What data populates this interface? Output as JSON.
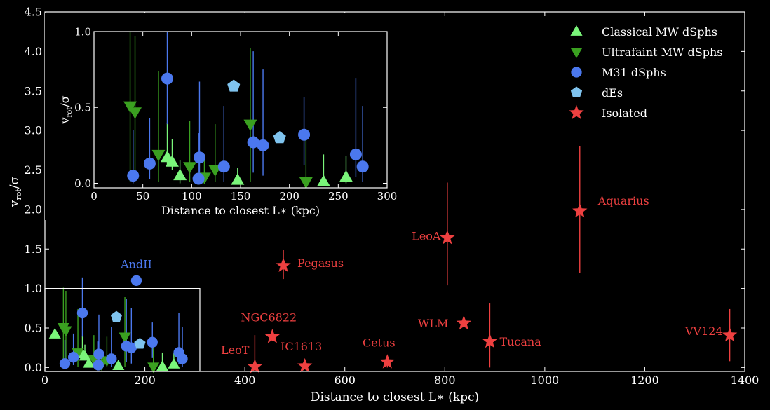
{
  "chart_data": [
    {
      "type": "scatter",
      "panel": "main",
      "xlabel": "Distance to closest L∗ (kpc)",
      "ylabel_main": "v",
      "ylabel_sub": "rot",
      "ylabel_tail": "/σ",
      "xlim": [
        0,
        1400
      ],
      "ylim": [
        -0.05,
        4.5
      ],
      "xticks": [
        "0",
        "200",
        "400",
        "600",
        "800",
        "1000",
        "1200",
        "1400"
      ],
      "yticks": [
        "0.0",
        "0.5",
        "1.0",
        "1.5",
        "2.0",
        "2.5",
        "3.0",
        "3.5",
        "4.0",
        "4.5"
      ],
      "legend_position": "top-right",
      "colors": {
        "classical": "#7af57a",
        "ultrafaint": "#3aa020",
        "m31": "#4b78ee",
        "des": "#7fc3ee",
        "isolated": "#ee4040",
        "axes": "#ffffff"
      },
      "series": [
        {
          "name": "Classical MW dSphs",
          "marker": "triangle-up",
          "points": [
            {
              "x": 20,
              "y": 0.42,
              "err": [
                0,
                0
              ]
            },
            {
              "x": 75,
              "y": 0.17,
              "err": [
                0.05,
                0.23
              ]
            },
            {
              "x": 80,
              "y": 0.14,
              "err": [
                0.05,
                0.15
              ]
            },
            {
              "x": 88,
              "y": 0.05,
              "err": [
                0.05,
                0.1
              ]
            },
            {
              "x": 147,
              "y": 0.02,
              "err": [
                0.02,
                0.08
              ]
            },
            {
              "x": 235,
              "y": 0.01,
              "err": [
                0.01,
                0.18
              ]
            },
            {
              "x": 258,
              "y": 0.04,
              "err": [
                0.04,
                0.14
              ]
            }
          ]
        },
        {
          "name": "Ultrafaint MW dSphs",
          "marker": "triangle-down",
          "points": [
            {
              "x": 37,
              "y": 0.51,
              "err": [
                0.5,
                0.5
              ]
            },
            {
              "x": 42,
              "y": 0.47,
              "err": [
                0.45,
                0.5
              ]
            },
            {
              "x": 66,
              "y": 0.19,
              "err": [
                0.18,
                0.55
              ]
            },
            {
              "x": 98,
              "y": 0.11,
              "err": [
                0.1,
                0.3
              ]
            },
            {
              "x": 113,
              "y": 0.04,
              "err": [
                0.04,
                0.15
              ]
            },
            {
              "x": 124,
              "y": 0.09,
              "err": [
                0.08,
                0.3
              ]
            },
            {
              "x": 160,
              "y": 0.39,
              "err": [
                0.38,
                0.5
              ]
            },
            {
              "x": 217,
              "y": 0.01,
              "err": [
                0.01,
                0.3
              ]
            }
          ]
        },
        {
          "name": "M31 dSphs",
          "marker": "circle",
          "points": [
            {
              "x": 40,
              "y": 0.05,
              "err": [
                0.05,
                0.3
              ]
            },
            {
              "x": 57,
              "y": 0.13,
              "err": [
                0.1,
                0.3
              ]
            },
            {
              "x": 75,
              "y": 0.69,
              "err": [
                0.3,
                0.45
              ]
            },
            {
              "x": 107,
              "y": 0.03,
              "err": [
                0.03,
                0.3
              ]
            },
            {
              "x": 108,
              "y": 0.17,
              "err": [
                0.15,
                0.5
              ]
            },
            {
              "x": 133,
              "y": 0.11,
              "err": [
                0.1,
                0.4
              ]
            },
            {
              "x": 163,
              "y": 0.27,
              "err": [
                0.2,
                0.6
              ]
            },
            {
              "x": 173,
              "y": 0.25,
              "err": [
                0.2,
                0.5
              ]
            },
            {
              "x": 183,
              "y": 1.1,
              "err": [
                0,
                0
              ]
            },
            {
              "x": 215,
              "y": 0.32,
              "err": [
                0.2,
                0.25
              ]
            },
            {
              "x": 268,
              "y": 0.19,
              "err": [
                0.15,
                0.5
              ]
            },
            {
              "x": 275,
              "y": 0.11,
              "err": [
                0.1,
                0.4
              ]
            }
          ]
        },
        {
          "name": "dEs",
          "marker": "pentagon",
          "points": [
            {
              "x": 143,
              "y": 0.64,
              "err": [
                0.03,
                0.03
              ]
            },
            {
              "x": 190,
              "y": 0.3,
              "err": [
                0.03,
                0.03
              ]
            }
          ]
        },
        {
          "name": "Isolated",
          "marker": "star",
          "points": [
            {
              "x": 420,
              "y": 0.01,
              "label": "LeoT",
              "err": [
                0.01,
                0.4
              ]
            },
            {
              "x": 455,
              "y": 0.39,
              "label": "NGC6822",
              "err": [
                0.05,
                0.05
              ]
            },
            {
              "x": 477,
              "y": 1.29,
              "label": "Pegasus",
              "err": [
                0.17,
                0.2
              ]
            },
            {
              "x": 520,
              "y": 0.02,
              "label": "IC1613",
              "err": [
                0.02,
                0.02
              ]
            },
            {
              "x": 685,
              "y": 0.07,
              "label": "Cetus",
              "err": [
                0.07,
                0.07
              ]
            },
            {
              "x": 805,
              "y": 1.64,
              "label": "LeoA",
              "err": [
                0.6,
                0.7
              ]
            },
            {
              "x": 838,
              "y": 0.56,
              "label": "WLM",
              "err": [
                0.03,
                0.03
              ]
            },
            {
              "x": 890,
              "y": 0.33,
              "label": "Tucana",
              "err": [
                0.33,
                0.48
              ]
            },
            {
              "x": 1070,
              "y": 1.98,
              "label": "Aquarius",
              "err": [
                0.78,
                0.82
              ]
            },
            {
              "x": 1370,
              "y": 0.41,
              "label": "VV124",
              "err": [
                0.33,
                0.33
              ]
            }
          ]
        }
      ],
      "annotations": [
        {
          "text": "AndII",
          "x": 183,
          "y": 1.1,
          "color": "#4b78ee"
        }
      ],
      "zoom_box": {
        "xlim": [
          0,
          310
        ],
        "ylim": [
          -0.05,
          1.0
        ]
      }
    },
    {
      "type": "scatter",
      "panel": "inset",
      "xlabel": "Distance to closest L∗ (kpc)",
      "ylabel_main": "v",
      "ylabel_sub": "rot",
      "ylabel_tail": "/σ",
      "xlim": [
        0,
        300
      ],
      "ylim": [
        -0.03,
        1.0
      ],
      "xticks": [
        "0",
        "50",
        "100",
        "150",
        "200",
        "250",
        "300"
      ],
      "yticks": [
        "0.0",
        "0.5",
        "1.0"
      ]
    }
  ]
}
